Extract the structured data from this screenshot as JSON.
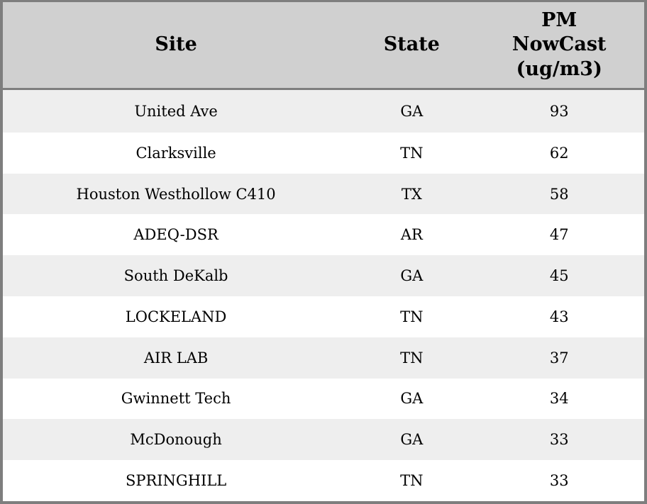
{
  "chart_data": {
    "type": "table",
    "columns": [
      "Site",
      "State",
      "PM\nNowCast\n(ug/m3)"
    ],
    "rows": [
      [
        "United Ave",
        "GA",
        93
      ],
      [
        "Clarksville",
        "TN",
        62
      ],
      [
        "Houston Westhollow C410",
        "TX",
        58
      ],
      [
        "ADEQ-DSR",
        "AR",
        47
      ],
      [
        "South DeKalb",
        "GA",
        45
      ],
      [
        "LOCKELAND",
        "TN",
        43
      ],
      [
        "AIR LAB",
        "TN",
        37
      ],
      [
        "Gwinnett Tech",
        "GA",
        34
      ],
      [
        "McDonough",
        "GA",
        33
      ],
      [
        "SPRINGHILL",
        "TN",
        33
      ]
    ],
    "layout": {
      "grid": "off",
      "row_striping": "alternating, first data row shaded",
      "text_align": "center"
    }
  },
  "colors": {
    "header_background": "#d0d0d0",
    "row_stripe": "#eeeeee",
    "row_plain": "#ffffff",
    "border": "#7e7e7e",
    "text": "#000000"
  }
}
